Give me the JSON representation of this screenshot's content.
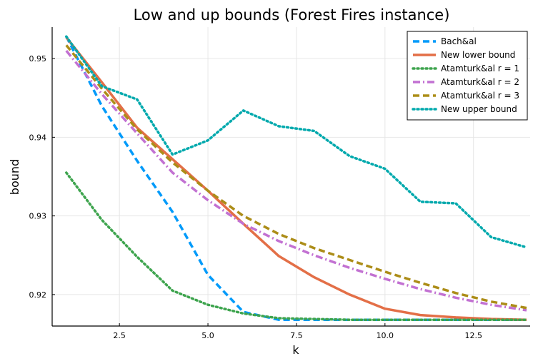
{
  "chart_data": {
    "type": "line",
    "title": "Low and up bounds (Forest Fires instance)",
    "xlabel": "k",
    "ylabel": "bound",
    "xlim": [
      0.6,
      14.1
    ],
    "ylim": [
      0.916,
      0.954
    ],
    "xticks": [
      2.5,
      5.0,
      7.5,
      10.0,
      12.5
    ],
    "xtick_labels": [
      "2.5",
      "5.0",
      "7.5",
      "10.0",
      "12.5"
    ],
    "yticks": [
      0.92,
      0.93,
      0.94,
      0.95
    ],
    "ytick_labels": [
      "0.92",
      "0.93",
      "0.94",
      "0.95"
    ],
    "grid": true,
    "legend_position": "top-right",
    "x": [
      1,
      2,
      3,
      4,
      5,
      6,
      7,
      8,
      9,
      10,
      11,
      12,
      13,
      14
    ],
    "series": [
      {
        "name": "Bach&al",
        "color": "#009AFA",
        "dash": "dashed",
        "values": [
          0.9528,
          0.944,
          0.937,
          0.9305,
          0.9225,
          0.9178,
          0.9168,
          0.9168,
          0.9168,
          0.9168,
          0.9168,
          0.9168,
          0.9168,
          0.9168
        ]
      },
      {
        "name": "New lower bound",
        "color": "#E36F47",
        "dash": "solid",
        "values": [
          0.9527,
          0.947,
          0.9412,
          0.9372,
          0.9332,
          0.929,
          0.9249,
          0.9222,
          0.92,
          0.9182,
          0.9174,
          0.9171,
          0.9169,
          0.9168
        ]
      },
      {
        "name": "Atamturk&al r = 1",
        "color": "#3EA44E",
        "dash": "dotted",
        "values": [
          0.9355,
          0.9295,
          0.9248,
          0.9205,
          0.9187,
          0.9176,
          0.917,
          0.9169,
          0.9168,
          0.9168,
          0.9168,
          0.9168,
          0.9168,
          0.9168
        ]
      },
      {
        "name": "Atamturk&al r = 2",
        "color": "#C271D2",
        "dash": "dashdot",
        "values": [
          0.951,
          0.9455,
          0.9405,
          0.9355,
          0.932,
          0.929,
          0.9268,
          0.925,
          0.9234,
          0.922,
          0.9207,
          0.9196,
          0.9187,
          0.918
        ]
      },
      {
        "name": "Atamturk&al r = 3",
        "color": "#AC8D18",
        "dash": "dashed",
        "values": [
          0.9517,
          0.9462,
          0.941,
          0.9368,
          0.9332,
          0.93,
          0.9277,
          0.9259,
          0.9244,
          0.9229,
          0.9215,
          0.9202,
          0.9191,
          0.9183
        ]
      },
      {
        "name": "New upper bound",
        "color": "#00A9AD",
        "dash": "dotted",
        "values": [
          0.9528,
          0.9465,
          0.9448,
          0.9378,
          0.9396,
          0.9434,
          0.9414,
          0.9408,
          0.9376,
          0.936,
          0.9318,
          0.9316,
          0.9273,
          0.926
        ]
      }
    ]
  }
}
